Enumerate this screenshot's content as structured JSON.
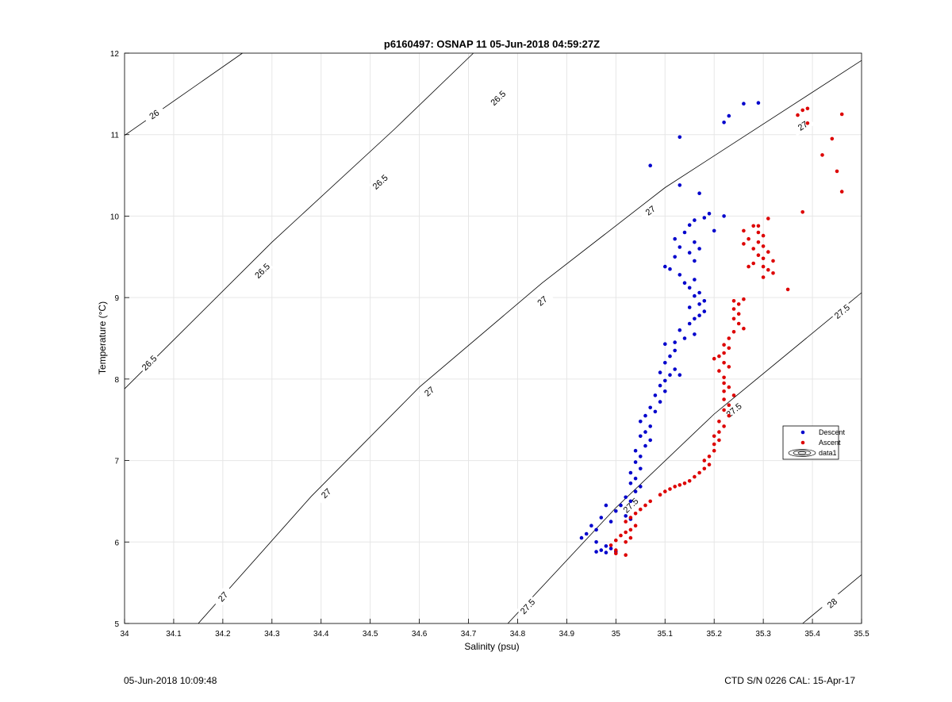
{
  "chart_data": {
    "type": "scatter",
    "title": "p6160497: OSNAP 11 05-Jun-2018 04:59:27Z",
    "xlabel": "Salinity (psu)",
    "ylabel": "Temperature (°C)",
    "xlim": [
      34,
      35.5
    ],
    "ylim": [
      5,
      12
    ],
    "xticks": [
      "34",
      "34.1",
      "34.2",
      "34.3",
      "34.4",
      "34.5",
      "34.6",
      "34.7",
      "34.8",
      "34.9",
      "35",
      "35.1",
      "35.2",
      "35.3",
      "35.4",
      "35.5"
    ],
    "yticks": [
      "5",
      "6",
      "7",
      "8",
      "9",
      "10",
      "11",
      "12"
    ],
    "grid": true,
    "legend_position": "right",
    "legend": [
      "Descent",
      "Ascent",
      "data1"
    ],
    "contours": {
      "series_name": "data1",
      "lines": [
        {
          "level": "26",
          "points": [
            [
              34.0,
              10.99
            ],
            [
              34.24,
              12.0
            ]
          ],
          "labels": [
            [
              34.06,
              11.25
            ]
          ]
        },
        {
          "level": "26.5",
          "points": [
            [
              34.0,
              7.88
            ],
            [
              34.3,
              9.68
            ],
            [
              34.55,
              11.07
            ],
            [
              34.71,
              12.0
            ]
          ],
          "labels": [
            [
              34.05,
              8.2
            ],
            [
              34.28,
              9.33
            ],
            [
              34.52,
              10.42
            ],
            [
              34.76,
              11.45
            ]
          ]
        },
        {
          "level": "27",
          "points": [
            [
              34.15,
              5.0
            ],
            [
              34.38,
              6.56
            ],
            [
              34.6,
              7.9
            ],
            [
              34.85,
              9.18
            ],
            [
              35.1,
              10.35
            ],
            [
              35.5,
              11.91
            ]
          ],
          "labels": [
            [
              34.2,
              5.33
            ],
            [
              34.41,
              6.6
            ],
            [
              34.62,
              7.85
            ],
            [
              34.85,
              8.96
            ],
            [
              35.07,
              10.07
            ],
            [
              35.38,
              11.11
            ]
          ]
        },
        {
          "level": "27.5",
          "points": [
            [
              34.78,
              5.0
            ],
            [
              35.0,
              6.42
            ],
            [
              35.2,
              7.57
            ],
            [
              35.5,
              9.06
            ]
          ],
          "labels": [
            [
              34.82,
              5.21
            ],
            [
              35.03,
              6.45
            ],
            [
              35.24,
              7.62
            ],
            [
              35.46,
              8.83
            ]
          ]
        },
        {
          "level": "28",
          "points": [
            [
              35.38,
              5.0
            ],
            [
              35.5,
              5.6
            ]
          ],
          "labels": [
            [
              35.44,
              5.25
            ]
          ]
        }
      ]
    },
    "series": [
      {
        "name": "Descent",
        "color": "#0000cc",
        "points": [
          [
            35.26,
            11.38
          ],
          [
            35.29,
            11.39
          ],
          [
            35.23,
            11.23
          ],
          [
            35.22,
            11.15
          ],
          [
            35.13,
            10.97
          ],
          [
            35.07,
            10.62
          ],
          [
            35.13,
            10.38
          ],
          [
            35.17,
            10.28
          ],
          [
            35.19,
            10.03
          ],
          [
            35.22,
            10.0
          ],
          [
            35.18,
            9.98
          ],
          [
            35.16,
            9.95
          ],
          [
            35.15,
            9.89
          ],
          [
            35.2,
            9.82
          ],
          [
            35.14,
            9.8
          ],
          [
            35.12,
            9.72
          ],
          [
            35.16,
            9.68
          ],
          [
            35.13,
            9.62
          ],
          [
            35.17,
            9.6
          ],
          [
            35.15,
            9.55
          ],
          [
            35.12,
            9.5
          ],
          [
            35.16,
            9.45
          ],
          [
            35.1,
            9.38
          ],
          [
            35.11,
            9.35
          ],
          [
            35.13,
            9.28
          ],
          [
            35.16,
            9.22
          ],
          [
            35.14,
            9.18
          ],
          [
            35.15,
            9.12
          ],
          [
            35.17,
            9.06
          ],
          [
            35.16,
            9.02
          ],
          [
            35.18,
            8.96
          ],
          [
            35.17,
            8.92
          ],
          [
            35.15,
            8.88
          ],
          [
            35.18,
            8.83
          ],
          [
            35.17,
            8.78
          ],
          [
            35.16,
            8.74
          ],
          [
            35.15,
            8.68
          ],
          [
            35.13,
            8.6
          ],
          [
            35.16,
            8.55
          ],
          [
            35.14,
            8.5
          ],
          [
            35.12,
            8.45
          ],
          [
            35.1,
            8.43
          ],
          [
            35.12,
            8.35
          ],
          [
            35.11,
            8.28
          ],
          [
            35.1,
            8.2
          ],
          [
            35.12,
            8.12
          ],
          [
            35.09,
            8.08
          ],
          [
            35.11,
            8.05
          ],
          [
            35.13,
            8.05
          ],
          [
            35.1,
            7.98
          ],
          [
            35.09,
            7.92
          ],
          [
            35.1,
            7.85
          ],
          [
            35.08,
            7.8
          ],
          [
            35.09,
            7.72
          ],
          [
            35.07,
            7.65
          ],
          [
            35.08,
            7.6
          ],
          [
            35.06,
            7.55
          ],
          [
            35.05,
            7.48
          ],
          [
            35.07,
            7.42
          ],
          [
            35.06,
            7.35
          ],
          [
            35.05,
            7.3
          ],
          [
            35.07,
            7.25
          ],
          [
            35.06,
            7.18
          ],
          [
            35.04,
            7.12
          ],
          [
            35.05,
            7.05
          ],
          [
            35.04,
            6.98
          ],
          [
            35.05,
            6.9
          ],
          [
            35.03,
            6.85
          ],
          [
            35.04,
            6.78
          ],
          [
            35.03,
            6.72
          ],
          [
            35.05,
            6.68
          ],
          [
            35.04,
            6.62
          ],
          [
            35.02,
            6.55
          ],
          [
            35.03,
            6.5
          ],
          [
            35.01,
            6.45
          ],
          [
            34.98,
            6.45
          ],
          [
            35.0,
            6.38
          ],
          [
            35.02,
            6.32
          ],
          [
            35.03,
            6.28
          ],
          [
            34.99,
            6.25
          ],
          [
            34.97,
            6.3
          ],
          [
            34.95,
            6.2
          ],
          [
            34.96,
            6.15
          ],
          [
            34.94,
            6.1
          ],
          [
            34.93,
            6.05
          ],
          [
            34.96,
            6.0
          ],
          [
            34.98,
            5.95
          ],
          [
            34.97,
            5.9
          ],
          [
            34.99,
            5.92
          ],
          [
            35.0,
            5.88
          ],
          [
            34.96,
            5.88
          ],
          [
            34.98,
            5.87
          ]
        ]
      },
      {
        "name": "Ascent",
        "color": "#dd0000",
        "points": [
          [
            35.38,
            11.3
          ],
          [
            35.39,
            11.32
          ],
          [
            35.37,
            11.24
          ],
          [
            35.39,
            11.14
          ],
          [
            35.46,
            11.25
          ],
          [
            35.44,
            10.95
          ],
          [
            35.42,
            10.75
          ],
          [
            35.45,
            10.55
          ],
          [
            35.46,
            10.3
          ],
          [
            35.38,
            10.05
          ],
          [
            35.31,
            9.97
          ],
          [
            35.28,
            9.88
          ],
          [
            35.29,
            9.88
          ],
          [
            35.26,
            9.82
          ],
          [
            35.29,
            9.8
          ],
          [
            35.3,
            9.76
          ],
          [
            35.27,
            9.72
          ],
          [
            35.29,
            9.68
          ],
          [
            35.26,
            9.66
          ],
          [
            35.3,
            9.63
          ],
          [
            35.28,
            9.6
          ],
          [
            35.31,
            9.56
          ],
          [
            35.29,
            9.52
          ],
          [
            35.3,
            9.48
          ],
          [
            35.32,
            9.45
          ],
          [
            35.28,
            9.42
          ],
          [
            35.3,
            9.38
          ],
          [
            35.27,
            9.38
          ],
          [
            35.31,
            9.34
          ],
          [
            35.32,
            9.3
          ],
          [
            35.3,
            9.25
          ],
          [
            35.35,
            9.1
          ],
          [
            35.26,
            8.98
          ],
          [
            35.24,
            8.96
          ],
          [
            35.25,
            8.92
          ],
          [
            35.24,
            8.86
          ],
          [
            35.25,
            8.8
          ],
          [
            35.24,
            8.74
          ],
          [
            35.25,
            8.68
          ],
          [
            35.26,
            8.62
          ],
          [
            35.24,
            8.58
          ],
          [
            35.23,
            8.5
          ],
          [
            35.22,
            8.42
          ],
          [
            35.23,
            8.38
          ],
          [
            35.22,
            8.32
          ],
          [
            35.21,
            8.28
          ],
          [
            35.2,
            8.25
          ],
          [
            35.22,
            8.2
          ],
          [
            35.23,
            8.15
          ],
          [
            35.21,
            8.1
          ],
          [
            35.22,
            8.02
          ],
          [
            35.22,
            7.95
          ],
          [
            35.23,
            7.9
          ],
          [
            35.22,
            7.85
          ],
          [
            35.24,
            7.8
          ],
          [
            35.22,
            7.75
          ],
          [
            35.23,
            7.68
          ],
          [
            35.22,
            7.62
          ],
          [
            35.23,
            7.55
          ],
          [
            35.21,
            7.48
          ],
          [
            35.22,
            7.42
          ],
          [
            35.21,
            7.35
          ],
          [
            35.2,
            7.3
          ],
          [
            35.21,
            7.25
          ],
          [
            35.2,
            7.2
          ],
          [
            35.2,
            7.12
          ],
          [
            35.19,
            7.05
          ],
          [
            35.18,
            7.0
          ],
          [
            35.19,
            6.95
          ],
          [
            35.18,
            6.9
          ],
          [
            35.17,
            6.85
          ],
          [
            35.16,
            6.8
          ],
          [
            35.15,
            6.75
          ],
          [
            35.14,
            6.72
          ],
          [
            35.13,
            6.7
          ],
          [
            35.12,
            6.68
          ],
          [
            35.11,
            6.65
          ],
          [
            35.1,
            6.62
          ],
          [
            35.09,
            6.58
          ],
          [
            35.07,
            6.5
          ],
          [
            35.06,
            6.45
          ],
          [
            35.05,
            6.4
          ],
          [
            35.04,
            6.35
          ],
          [
            35.03,
            6.3
          ],
          [
            35.02,
            6.25
          ],
          [
            35.04,
            6.2
          ],
          [
            35.03,
            6.15
          ],
          [
            35.02,
            6.12
          ],
          [
            35.01,
            6.08
          ],
          [
            35.03,
            6.05
          ],
          [
            35.0,
            6.02
          ],
          [
            35.02,
            6.0
          ],
          [
            34.99,
            5.96
          ],
          [
            35.0,
            5.9
          ],
          [
            35.0,
            5.86
          ],
          [
            35.02,
            5.84
          ]
        ]
      }
    ]
  },
  "footer": {
    "left": "05-Jun-2018 10:09:48",
    "right": "CTD S/N 0226  CAL: 15-Apr-17"
  }
}
